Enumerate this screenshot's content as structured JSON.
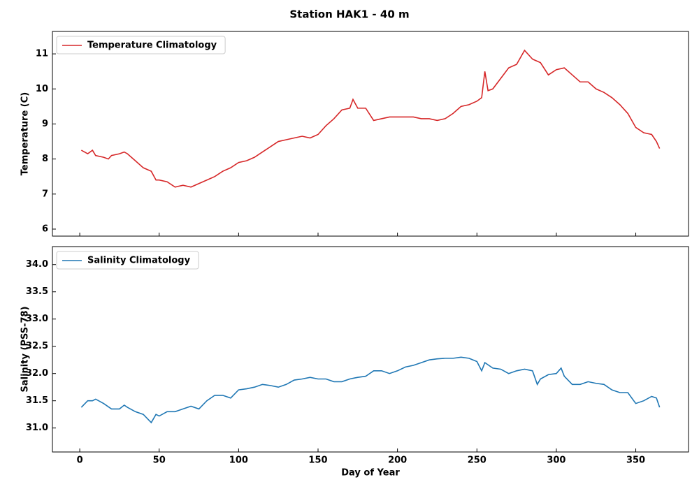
{
  "title": "Station HAK1 - 40 m",
  "chart_data": [
    {
      "type": "line",
      "ylabel": "Temperature (C)",
      "legend": "upper left",
      "xlim": [
        -17.2,
        383.2
      ],
      "ylim": [
        5.8,
        11.64
      ],
      "yticks": [
        6,
        7,
        8,
        9,
        10,
        11
      ],
      "series": [
        {
          "name": "Temperature Climatology",
          "color": "#d62728",
          "x": [
            1,
            5,
            8,
            10,
            15,
            18,
            20,
            25,
            28,
            30,
            35,
            40,
            45,
            48,
            50,
            55,
            60,
            65,
            70,
            75,
            80,
            85,
            90,
            95,
            100,
            105,
            110,
            115,
            120,
            125,
            130,
            135,
            140,
            145,
            150,
            155,
            160,
            165,
            170,
            172,
            175,
            180,
            185,
            190,
            195,
            200,
            205,
            210,
            215,
            220,
            225,
            230,
            235,
            240,
            245,
            250,
            253,
            255,
            257,
            260,
            265,
            270,
            275,
            280,
            285,
            290,
            295,
            300,
            305,
            310,
            315,
            320,
            325,
            330,
            335,
            340,
            345,
            350,
            355,
            360,
            363,
            365
          ],
          "values": [
            8.25,
            8.15,
            8.25,
            8.1,
            8.05,
            8.0,
            8.1,
            8.15,
            8.2,
            8.15,
            7.95,
            7.75,
            7.65,
            7.4,
            7.4,
            7.35,
            7.2,
            7.25,
            7.2,
            7.3,
            7.4,
            7.5,
            7.65,
            7.75,
            7.9,
            7.95,
            8.05,
            8.2,
            8.35,
            8.5,
            8.55,
            8.6,
            8.65,
            8.6,
            8.7,
            8.95,
            9.15,
            9.4,
            9.45,
            9.7,
            9.45,
            9.45,
            9.1,
            9.15,
            9.2,
            9.2,
            9.2,
            9.2,
            9.15,
            9.15,
            9.1,
            9.15,
            9.3,
            9.5,
            9.55,
            9.65,
            9.75,
            10.5,
            9.95,
            10.0,
            10.3,
            10.6,
            10.7,
            11.1,
            10.85,
            10.75,
            10.4,
            10.55,
            10.6,
            10.4,
            10.2,
            10.2,
            10.0,
            9.9,
            9.75,
            9.55,
            9.3,
            8.9,
            8.75,
            8.7,
            8.5,
            8.3
          ]
        }
      ]
    },
    {
      "type": "line",
      "xlabel": "Day of Year",
      "ylabel": "Salinity (PSS-78)",
      "legend": "upper left",
      "xlim": [
        -17.2,
        383.2
      ],
      "ylim": [
        30.56,
        34.33
      ],
      "xticks": [
        0,
        50,
        100,
        150,
        200,
        250,
        300,
        350
      ],
      "yticks": [
        {
          "value": 31,
          "label": "31.0"
        },
        31.5,
        {
          "value": 32,
          "label": "32.0"
        },
        32.5,
        {
          "value": 33,
          "label": "33.0"
        },
        33.5,
        {
          "value": 34,
          "label": "34.0"
        }
      ],
      "series": [
        {
          "name": "Salinity Climatology",
          "color": "#1f77b4",
          "x": [
            1,
            5,
            8,
            10,
            15,
            20,
            25,
            28,
            30,
            35,
            40,
            45,
            48,
            50,
            55,
            60,
            65,
            70,
            75,
            80,
            85,
            90,
            95,
            100,
            105,
            110,
            115,
            120,
            125,
            130,
            135,
            140,
            145,
            150,
            155,
            160,
            165,
            170,
            175,
            180,
            185,
            190,
            195,
            200,
            205,
            210,
            215,
            220,
            225,
            230,
            235,
            240,
            245,
            250,
            253,
            255,
            260,
            265,
            270,
            275,
            280,
            285,
            288,
            290,
            295,
            300,
            303,
            305,
            310,
            315,
            320,
            325,
            330,
            335,
            340,
            345,
            350,
            355,
            360,
            363,
            365
          ],
          "values": [
            31.38,
            31.5,
            31.5,
            31.53,
            31.45,
            31.35,
            31.35,
            31.42,
            31.38,
            31.3,
            31.25,
            31.1,
            31.25,
            31.22,
            31.3,
            31.3,
            31.35,
            31.4,
            31.35,
            31.5,
            31.6,
            31.6,
            31.55,
            31.7,
            31.72,
            31.75,
            31.8,
            31.78,
            31.75,
            31.8,
            31.88,
            31.9,
            31.93,
            31.9,
            31.9,
            31.85,
            31.85,
            31.9,
            31.93,
            31.95,
            32.05,
            32.05,
            32.0,
            32.05,
            32.12,
            32.15,
            32.2,
            32.25,
            32.27,
            32.28,
            32.28,
            32.3,
            32.28,
            32.22,
            32.05,
            32.2,
            32.1,
            32.08,
            32.0,
            32.05,
            32.08,
            32.05,
            31.8,
            31.9,
            31.98,
            32.0,
            32.1,
            31.95,
            31.8,
            31.8,
            31.85,
            31.82,
            31.8,
            31.7,
            31.65,
            31.65,
            31.45,
            31.5,
            31.58,
            31.55,
            31.38
          ]
        }
      ]
    }
  ]
}
